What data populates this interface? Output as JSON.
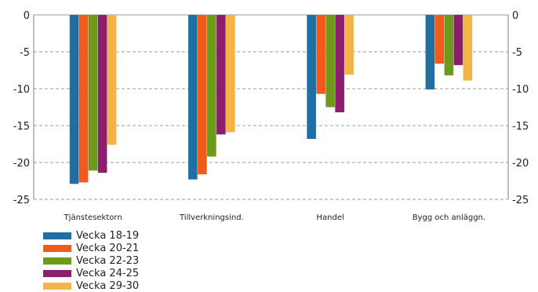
{
  "chart_data": {
    "type": "bar",
    "categories": [
      "Tjänstesektorn",
      "Tillverkningsind.",
      "Handel",
      "Bygg och anläggn."
    ],
    "series": [
      {
        "name": "Vecka 18-19",
        "color": "#1f6fa3",
        "values": [
          -22.9,
          -22.3,
          -16.8,
          -10.1
        ]
      },
      {
        "name": "Vecka 20-21",
        "color": "#f05a1a",
        "values": [
          -22.7,
          -21.6,
          -10.7,
          -6.6
        ]
      },
      {
        "name": "Vecka 22-23",
        "color": "#6e9a1c",
        "values": [
          -21.1,
          -19.2,
          -12.5,
          -8.2
        ]
      },
      {
        "name": "Vecka 24-25",
        "color": "#8b1f6e",
        "values": [
          -21.4,
          -16.2,
          -13.2,
          -6.8
        ]
      },
      {
        "name": "Vecka 29-30",
        "color": "#f2b446",
        "values": [
          -17.6,
          -15.9,
          -8.1,
          -8.9
        ]
      }
    ],
    "ylim": [
      -25,
      0
    ],
    "yticks": [
      "0",
      "-5",
      "-10",
      "-15",
      "-20",
      "-25"
    ],
    "ytick_values": [
      0,
      -5,
      -10,
      -15,
      -20,
      -25
    ],
    "grid": true,
    "secondary_y_axis": true,
    "legend_position": "bottom-left"
  }
}
